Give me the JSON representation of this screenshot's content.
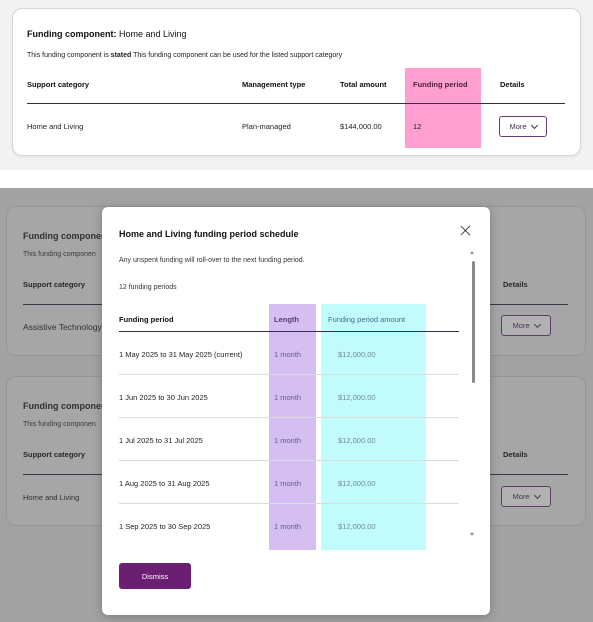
{
  "top_card": {
    "title_label": "Funding component:",
    "title_value": "Home and Living",
    "desc_prefix": "This funding component is",
    "desc_bold": "stated",
    "desc_suffix": "This funding component can be used for the listed support category",
    "headers": {
      "support_category": "Support category",
      "management_type": "Management type",
      "total_amount": "Total amount",
      "funding_period": "Funding period",
      "details": "Details"
    },
    "row": {
      "support_category": "Home and Living",
      "management_type": "Plan-managed",
      "total_amount": "$144,000.00",
      "funding_period": "12",
      "more_label": "More"
    },
    "highlight_color": "#ff9fd0"
  },
  "background_cards": [
    {
      "title": "Funding componen",
      "desc": "This funding componen",
      "support_category_header": "Support category",
      "details_header": "Details",
      "category_value": "Assistive Technology",
      "more_label": "More"
    },
    {
      "title": "Funding componen",
      "desc": "This funding componen",
      "support_category_header": "Support category",
      "details_header": "Details",
      "category_value": "Home and Living",
      "more_label": "More"
    }
  ],
  "modal": {
    "title": "Home and Living funding period schedule",
    "note": "Any unspent funding will roll-over to the next funding period.",
    "count": "12 funding periods",
    "headers": {
      "period": "Funding period",
      "length": "Length",
      "amount": "Funding period amount"
    },
    "rows": [
      {
        "period": "1 May 2025 to 31 May 2025 (current)",
        "length": "1 month",
        "amount": "$12,000.00"
      },
      {
        "period": "1 Jun 2025 to 30 Jun 2025",
        "length": "1 month",
        "amount": "$12,000.00"
      },
      {
        "period": "1 Jul 2025 to 31 Jul 2025",
        "length": "1 month",
        "amount": "$12,000.00"
      },
      {
        "period": "1 Aug 2025 to 31 Aug 2025",
        "length": "1 month",
        "amount": "$12,000.00"
      },
      {
        "period": "1 Sep 2025 to 30 Sep 2025",
        "length": "1 month",
        "amount": "$12,000.00"
      }
    ],
    "dismiss_label": "Dismiss",
    "colors": {
      "length_highlight": "#d5bff2",
      "amount_highlight": "#c2fbfb",
      "dismiss_bg": "#6a1f72"
    }
  }
}
